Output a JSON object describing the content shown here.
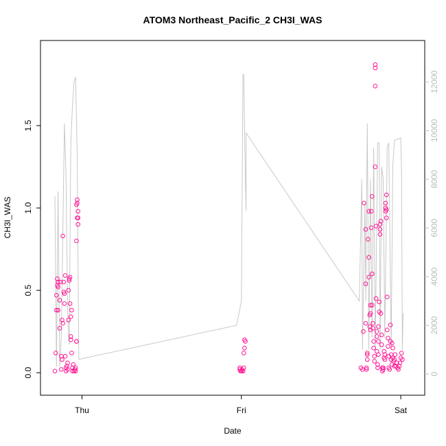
{
  "chart_data": {
    "type": "scatter",
    "title": "ATOM3 Northeast_Pacific_2 CH3I_WAS",
    "xlabel": "Date",
    "ylabel": "CH3I_WAS",
    "x_ticks": [
      "Thu",
      "Fri",
      "Sat"
    ],
    "xlim": [
      -0.17,
      2.06
    ],
    "ylim": [
      -0.07,
      1.95
    ],
    "y_ticks": [
      0.0,
      0.5,
      1.0,
      1.5
    ],
    "y2_ticks": [
      0,
      2000,
      4000,
      6000,
      8000,
      10000,
      12000
    ],
    "y2lim": [
      -420,
      13250
    ],
    "colors": {
      "points": "#ff1493",
      "altitude_line": "#c8c8c8",
      "secondary_axis": "#bbbbbb"
    },
    "series": [
      {
        "marker": "open-circle",
        "axis": "left",
        "values": [
          [
            -0.17,
            0.01
          ],
          [
            -0.165,
            0.12
          ],
          [
            -0.16,
            0.47
          ],
          [
            -0.16,
            0.38
          ],
          [
            -0.155,
            0.53
          ],
          [
            -0.155,
            0.57
          ],
          [
            -0.15,
            0.55
          ],
          [
            -0.15,
            0.52
          ],
          [
            -0.15,
            0.38
          ],
          [
            -0.14,
            0.44
          ],
          [
            -0.14,
            0.27
          ],
          [
            -0.135,
            0.55
          ],
          [
            -0.13,
            0.1
          ],
          [
            -0.13,
            0.02
          ],
          [
            -0.125,
            0.08
          ],
          [
            -0.125,
            0.32
          ],
          [
            -0.12,
            0.3
          ],
          [
            -0.12,
            0.83
          ],
          [
            -0.115,
            0.55
          ],
          [
            -0.115,
            0.49
          ],
          [
            -0.11,
            0.48
          ],
          [
            -0.11,
            0.42
          ],
          [
            -0.105,
            0.59
          ],
          [
            -0.105,
            0.1
          ],
          [
            -0.1,
            0.03
          ],
          [
            -0.1,
            0.01
          ],
          [
            -0.095,
            0.04
          ],
          [
            -0.09,
            0.02
          ],
          [
            -0.09,
            0.06
          ],
          [
            -0.085,
            0.32
          ],
          [
            -0.085,
            0.5
          ],
          [
            -0.08,
            0.57
          ],
          [
            -0.08,
            0.56
          ],
          [
            -0.075,
            0.58
          ],
          [
            -0.075,
            0.42
          ],
          [
            -0.07,
            0.34
          ],
          [
            -0.07,
            0.22
          ],
          [
            -0.07,
            0.2
          ],
          [
            -0.065,
            0.38
          ],
          [
            -0.065,
            0.12
          ],
          [
            -0.06,
            0.03
          ],
          [
            -0.06,
            0.01
          ],
          [
            -0.055,
            0.05
          ],
          [
            -0.05,
            0.01
          ],
          [
            -0.045,
            0.02
          ],
          [
            -0.04,
            0.03
          ],
          [
            -0.04,
            0.01
          ],
          [
            -0.035,
            0.19
          ],
          [
            -0.035,
            0.19
          ],
          [
            -0.035,
            0.8
          ],
          [
            -0.03,
            1.05
          ],
          [
            -0.03,
            1.03
          ],
          [
            -0.03,
            0.94
          ],
          [
            -0.025,
            0.94
          ],
          [
            -0.025,
            0.9
          ],
          [
            -0.035,
            1.02
          ],
          [
            -0.025,
            0.98
          ],
          [
            0.99,
            0.03
          ],
          [
            0.99,
            0.02
          ],
          [
            0.995,
            0.01
          ],
          [
            1.0,
            0.01
          ],
          [
            1.005,
            0.02
          ],
          [
            1.01,
            0.01
          ],
          [
            1.015,
            0.03
          ],
          [
            1.015,
            0.12
          ],
          [
            1.02,
            0.15
          ],
          [
            1.02,
            0.2
          ],
          [
            1.025,
            0.19
          ],
          [
            1.01,
            0.01
          ],
          [
            1.77,
            1.03
          ],
          [
            1.78,
            0.87
          ],
          [
            1.78,
            0.54
          ],
          [
            1.78,
            0.3
          ],
          [
            1.785,
            0.03
          ],
          [
            1.785,
            0.02
          ],
          [
            1.79,
            0.12
          ],
          [
            1.79,
            0.11
          ],
          [
            1.79,
            0.08
          ],
          [
            1.795,
            0.81
          ],
          [
            1.8,
            0.98
          ],
          [
            1.8,
            0.7
          ],
          [
            1.8,
            0.58
          ],
          [
            1.805,
            0.35
          ],
          [
            1.805,
            0.28
          ],
          [
            1.81,
            0.41
          ],
          [
            1.81,
            0.36
          ],
          [
            1.81,
            0.26
          ],
          [
            1.815,
            0.88
          ],
          [
            1.815,
            0.98
          ],
          [
            1.82,
            1.07
          ],
          [
            1.82,
            0.6
          ],
          [
            1.82,
            0.41
          ],
          [
            1.825,
            0.27
          ],
          [
            1.825,
            0.3
          ],
          [
            1.83,
            0.19
          ],
          [
            1.83,
            0.15
          ],
          [
            1.835,
            0.07
          ],
          [
            1.835,
            0.1
          ],
          [
            1.84,
            1.87
          ],
          [
            1.84,
            1.85
          ],
          [
            1.84,
            1.74
          ],
          [
            1.84,
            1.25
          ],
          [
            1.845,
            0.89
          ],
          [
            1.845,
            0.45
          ],
          [
            1.85,
            0.25
          ],
          [
            1.85,
            0.22
          ],
          [
            1.85,
            0.13
          ],
          [
            1.855,
            0.05
          ],
          [
            1.855,
            0.03
          ],
          [
            1.86,
            0.28
          ],
          [
            1.86,
            0.19
          ],
          [
            1.86,
            0.11
          ],
          [
            1.865,
            0.37
          ],
          [
            1.865,
            0.43
          ],
          [
            1.87,
            0.87
          ],
          [
            1.87,
            0.84
          ],
          [
            1.87,
            0.9
          ],
          [
            1.875,
            0.92
          ],
          [
            1.875,
            0.36
          ],
          [
            1.88,
            0.23
          ],
          [
            1.88,
            0.17
          ],
          [
            1.885,
            0.03
          ],
          [
            1.885,
            0.01
          ],
          [
            1.89,
            0.02
          ],
          [
            1.89,
            0.03
          ],
          [
            1.895,
            0.09
          ],
          [
            1.895,
            0.13
          ],
          [
            1.9,
            0.08
          ],
          [
            1.9,
            0.11
          ],
          [
            1.905,
            0.98
          ],
          [
            1.905,
            1.0
          ],
          [
            1.905,
            1.03
          ],
          [
            1.91,
            1.08
          ],
          [
            1.91,
            0.99
          ],
          [
            1.91,
            0.94
          ],
          [
            1.915,
            0.46
          ],
          [
            1.915,
            0.26
          ],
          [
            1.92,
            0.21
          ],
          [
            1.92,
            0.16
          ],
          [
            1.925,
            0.1
          ],
          [
            1.925,
            0.03
          ],
          [
            1.93,
            0.02
          ],
          [
            1.935,
            0.19
          ],
          [
            1.935,
            0.29
          ],
          [
            1.94,
            0.11
          ],
          [
            1.94,
            0.08
          ],
          [
            1.945,
            0.05
          ],
          [
            1.945,
            0.18
          ],
          [
            1.95,
            0.15
          ],
          [
            1.95,
            0.09
          ],
          [
            1.955,
            0.07
          ],
          [
            1.96,
            0.08
          ],
          [
            1.96,
            0.04
          ],
          [
            1.965,
            0.11
          ],
          [
            1.97,
            0.04
          ],
          [
            1.975,
            0.06
          ],
          [
            1.98,
            0.03
          ],
          [
            1.985,
            0.02
          ],
          [
            1.99,
            0.04
          ],
          [
            1.995,
            0.06
          ],
          [
            2.0,
            0.09
          ],
          [
            2.005,
            0.12
          ],
          [
            2.01,
            0.08
          ],
          [
            1.75,
            0.03
          ],
          [
            1.76,
            0.02
          ],
          [
            1.765,
            0.25
          ]
        ]
      },
      {
        "axis": "right",
        "line": true,
        "values": [
          [
            -0.17,
            7300
          ],
          [
            -0.16,
            300
          ],
          [
            -0.15,
            7500
          ],
          [
            -0.14,
            300
          ],
          [
            -0.13,
            1500
          ],
          [
            -0.11,
            10300
          ],
          [
            -0.1,
            8000
          ],
          [
            -0.09,
            2500
          ],
          [
            -0.08,
            1200
          ],
          [
            -0.07,
            9500
          ],
          [
            -0.06,
            11000
          ],
          [
            -0.05,
            12000
          ],
          [
            -0.04,
            12200
          ],
          [
            -0.03,
            9000
          ],
          [
            -0.02,
            600
          ],
          [
            0.97,
            2000
          ],
          [
            1.0,
            3000
          ],
          [
            1.01,
            12300
          ],
          [
            1.015,
            12300
          ],
          [
            1.02,
            10000
          ],
          [
            1.025,
            8000
          ],
          [
            1.03,
            6700
          ],
          [
            1.03,
            9900
          ],
          [
            1.74,
            3000
          ],
          [
            1.755,
            8000
          ],
          [
            1.76,
            1000
          ],
          [
            1.775,
            7000
          ],
          [
            1.78,
            3000
          ],
          [
            1.79,
            10300
          ],
          [
            1.8,
            1000
          ],
          [
            1.81,
            8000
          ],
          [
            1.82,
            1500
          ],
          [
            1.83,
            9300
          ],
          [
            1.84,
            1000
          ],
          [
            1.855,
            9500
          ],
          [
            1.865,
            9500
          ],
          [
            1.87,
            1000
          ],
          [
            1.88,
            8500
          ],
          [
            1.89,
            8000
          ],
          [
            1.9,
            1500
          ],
          [
            1.915,
            9300
          ],
          [
            1.925,
            9500
          ],
          [
            1.94,
            1000
          ],
          [
            1.95,
            8500
          ],
          [
            1.96,
            9600
          ],
          [
            2.0,
            9700
          ],
          [
            2.005,
            8300
          ],
          [
            2.01,
            1000
          ],
          [
            2.015,
            2500
          ]
        ]
      }
    ]
  }
}
